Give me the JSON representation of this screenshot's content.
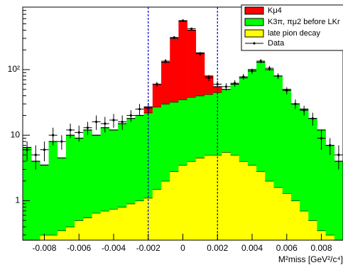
{
  "chart_data": {
    "type": "stacked_histogram",
    "bins": [
      -0.00925,
      -0.00875,
      -0.00825,
      -0.00775,
      -0.00725,
      -0.00675,
      -0.00625,
      -0.00575,
      -0.00525,
      -0.00475,
      -0.00425,
      -0.00375,
      -0.00325,
      -0.00275,
      -0.00225,
      -0.00175,
      -0.00125,
      -0.00075,
      -0.00025,
      0.00025,
      0.00075,
      0.00125,
      0.00175,
      0.00225,
      0.00275,
      0.00325,
      0.00375,
      0.00425,
      0.00475,
      0.00525,
      0.00575,
      0.00625,
      0.00675,
      0.00725,
      0.00775,
      0.00825,
      0.00875,
      0.00925
    ],
    "series": [
      {
        "name": "late pion decay",
        "color": "#ffff00",
        "values": [
          0.25,
          0.25,
          0.3,
          0.3,
          0.35,
          0.4,
          0.5,
          0.55,
          0.65,
          0.7,
          0.75,
          0.8,
          0.9,
          1,
          1.1,
          1.5,
          2,
          2.8,
          3.5,
          4,
          4.5,
          5,
          5,
          5.5,
          5,
          4,
          3.5,
          2.8,
          2,
          1.6,
          1.3,
          1,
          0.7,
          0.5,
          0.35,
          0.3,
          0.25
        ]
      },
      {
        "name": "K3π, πμ2 before LKr",
        "color": "#00ff00",
        "values": [
          6.25,
          3.75,
          3.2,
          7.7,
          4.15,
          9.6,
          8.5,
          11.45,
          9.35,
          12.3,
          11.25,
          14.2,
          17.1,
          19,
          20.9,
          25.5,
          28,
          29.2,
          31.5,
          34,
          35.5,
          37,
          40,
          44.5,
          55,
          71,
          96.5,
          127.2,
          98,
          78.4,
          48.7,
          29,
          24.3,
          17.5,
          11.65,
          6.7,
          3.75
        ]
      },
      {
        "name": "Kμ4",
        "color": "#ff0000",
        "values": [
          0,
          0,
          0,
          0,
          0,
          0,
          0,
          0,
          0,
          0,
          0,
          0,
          0,
          0,
          5,
          33,
          100,
          268,
          515,
          362,
          140,
          38,
          10,
          0,
          0,
          0,
          0,
          0,
          0,
          0,
          0,
          0,
          0,
          0,
          0,
          0,
          0
        ]
      }
    ],
    "data_series": {
      "name": "Data",
      "color": "#000000",
      "values": [
        6,
        5,
        6,
        10,
        8,
        12,
        11,
        13,
        16,
        15,
        17,
        16,
        20,
        25,
        26,
        60,
        135,
        310,
        560,
        420,
        175,
        75,
        60,
        55,
        62,
        78,
        95,
        135,
        105,
        80,
        48,
        30,
        24,
        18,
        9,
        7,
        5
      ],
      "errors": [
        2,
        2,
        2,
        3,
        2,
        3,
        3,
        3,
        4,
        4,
        4,
        4,
        4,
        5,
        5,
        5,
        10,
        15,
        20,
        18,
        12,
        8,
        7,
        7,
        7,
        8,
        9,
        10,
        9,
        8,
        6,
        5,
        4,
        4,
        3,
        2,
        2
      ]
    },
    "vlines": [
      -0.002,
      0.002
    ],
    "vline_color": "#0000cc",
    "xlabel": "M²miss [GeV²/c⁴]",
    "xlim": [
      -0.00925,
      0.00925
    ],
    "xticks": [
      -0.008,
      -0.006,
      -0.004,
      -0.002,
      0,
      0.002,
      0.004,
      0.006,
      0.008
    ],
    "ylim": [
      0.25,
      900
    ],
    "ylog": true,
    "yticks": [
      1,
      10,
      {
        "value": 100,
        "label": "10²"
      }
    ],
    "legend": "top-right"
  }
}
